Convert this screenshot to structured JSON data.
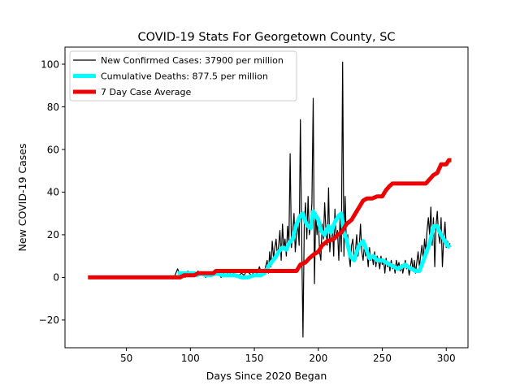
{
  "chart_data": {
    "type": "line",
    "title": "COVID-19 Stats For Georgetown County, SC",
    "xlabel": "Days Since 2020 Began",
    "ylabel": "New COVID-19 Cases",
    "xlim": [
      2,
      317
    ],
    "ylim": [
      -33,
      108
    ],
    "xticks": [
      50,
      100,
      150,
      200,
      250,
      300
    ],
    "yticks": [
      -20,
      0,
      20,
      40,
      60,
      80,
      100
    ],
    "grid": false,
    "legend_position": "upper-left",
    "series": [
      {
        "name": "New Confirmed Cases: 37900 per million",
        "color": "#000000",
        "points": [
          [
            86,
            0
          ],
          [
            88,
            1
          ],
          [
            90,
            4
          ],
          [
            92,
            1
          ],
          [
            94,
            2
          ],
          [
            96,
            0
          ],
          [
            98,
            3
          ],
          [
            100,
            1
          ],
          [
            102,
            2
          ],
          [
            104,
            1
          ],
          [
            106,
            3
          ],
          [
            108,
            1
          ],
          [
            110,
            2
          ],
          [
            112,
            0
          ],
          [
            114,
            2
          ],
          [
            116,
            1
          ],
          [
            118,
            3
          ],
          [
            120,
            1
          ],
          [
            122,
            2
          ],
          [
            124,
            0
          ],
          [
            126,
            2
          ],
          [
            128,
            1
          ],
          [
            130,
            3
          ],
          [
            132,
            1
          ],
          [
            134,
            2
          ],
          [
            136,
            0
          ],
          [
            138,
            1
          ],
          [
            140,
            2
          ],
          [
            142,
            1
          ],
          [
            144,
            3
          ],
          [
            146,
            2
          ],
          [
            148,
            1
          ],
          [
            150,
            3
          ],
          [
            152,
            2
          ],
          [
            154,
            5
          ],
          [
            156,
            1
          ],
          [
            158,
            3
          ],
          [
            160,
            8
          ],
          [
            161,
            2
          ],
          [
            162,
            12
          ],
          [
            163,
            5
          ],
          [
            164,
            17
          ],
          [
            165,
            9
          ],
          [
            166,
            14
          ],
          [
            167,
            18
          ],
          [
            168,
            10
          ],
          [
            169,
            15
          ],
          [
            170,
            22
          ],
          [
            171,
            8
          ],
          [
            172,
            25
          ],
          [
            173,
            13
          ],
          [
            174,
            18
          ],
          [
            175,
            10
          ],
          [
            176,
            24
          ],
          [
            177,
            16
          ],
          [
            178,
            58
          ],
          [
            179,
            14
          ],
          [
            180,
            22
          ],
          [
            181,
            30
          ],
          [
            182,
            12
          ],
          [
            183,
            20
          ],
          [
            184,
            25
          ],
          [
            185,
            15
          ],
          [
            186,
            74
          ],
          [
            187,
            18
          ],
          [
            188,
            -28
          ],
          [
            189,
            25
          ],
          [
            190,
            35
          ],
          [
            191,
            18
          ],
          [
            192,
            38
          ],
          [
            193,
            20
          ],
          [
            194,
            25
          ],
          [
            195,
            35
          ],
          [
            196,
            84
          ],
          [
            197,
            -3
          ],
          [
            198,
            30
          ],
          [
            199,
            20
          ],
          [
            200,
            28
          ],
          [
            201,
            12
          ],
          [
            202,
            8
          ],
          [
            203,
            25
          ],
          [
            204,
            18
          ],
          [
            205,
            35
          ],
          [
            206,
            22
          ],
          [
            207,
            15
          ],
          [
            208,
            42
          ],
          [
            209,
            12
          ],
          [
            210,
            20
          ],
          [
            211,
            25
          ],
          [
            212,
            10
          ],
          [
            213,
            32
          ],
          [
            214,
            18
          ],
          [
            215,
            22
          ],
          [
            216,
            8
          ],
          [
            217,
            28
          ],
          [
            218,
            12
          ],
          [
            219,
            101
          ],
          [
            220,
            10
          ],
          [
            221,
            38
          ],
          [
            222,
            15
          ],
          [
            223,
            20
          ],
          [
            224,
            10
          ],
          [
            225,
            5
          ],
          [
            226,
            15
          ],
          [
            227,
            18
          ],
          [
            228,
            8
          ],
          [
            229,
            12
          ],
          [
            230,
            20
          ],
          [
            231,
            10
          ],
          [
            232,
            15
          ],
          [
            233,
            25
          ],
          [
            234,
            12
          ],
          [
            235,
            8
          ],
          [
            236,
            15
          ],
          [
            237,
            10
          ],
          [
            238,
            12
          ],
          [
            239,
            5
          ],
          [
            240,
            14
          ],
          [
            241,
            8
          ],
          [
            242,
            10
          ],
          [
            243,
            6
          ],
          [
            244,
            12
          ],
          [
            245,
            5
          ],
          [
            246,
            10
          ],
          [
            247,
            8
          ],
          [
            248,
            4
          ],
          [
            249,
            10
          ],
          [
            250,
            6
          ],
          [
            251,
            8
          ],
          [
            252,
            2
          ],
          [
            253,
            9
          ],
          [
            254,
            5
          ],
          [
            255,
            7
          ],
          [
            256,
            3
          ],
          [
            257,
            8
          ],
          [
            258,
            4
          ],
          [
            259,
            6
          ],
          [
            260,
            2
          ],
          [
            261,
            8
          ],
          [
            262,
            5
          ],
          [
            263,
            7
          ],
          [
            264,
            3
          ],
          [
            265,
            6
          ],
          [
            266,
            2
          ],
          [
            267,
            5
          ],
          [
            268,
            8
          ],
          [
            269,
            4
          ],
          [
            270,
            6
          ],
          [
            271,
            1
          ],
          [
            272,
            5
          ],
          [
            273,
            9
          ],
          [
            274,
            3
          ],
          [
            275,
            8
          ],
          [
            276,
            2
          ],
          [
            277,
            7
          ],
          [
            278,
            12
          ],
          [
            279,
            5
          ],
          [
            280,
            10
          ],
          [
            281,
            15
          ],
          [
            282,
            8
          ],
          [
            283,
            18
          ],
          [
            284,
            12
          ],
          [
            285,
            22
          ],
          [
            286,
            28
          ],
          [
            287,
            20
          ],
          [
            288,
            33
          ],
          [
            289,
            15
          ],
          [
            290,
            28
          ],
          [
            291,
            5
          ],
          [
            292,
            24
          ],
          [
            293,
            31
          ],
          [
            294,
            20
          ],
          [
            295,
            16
          ],
          [
            296,
            28
          ],
          [
            297,
            5
          ],
          [
            298,
            18
          ],
          [
            299,
            26
          ],
          [
            300,
            14
          ],
          [
            301,
            17
          ],
          [
            302,
            15
          ],
          [
            303,
            16
          ]
        ]
      },
      {
        "name": "Cumulative Deaths: 877.5 per million",
        "color": "#00ffff",
        "points": [
          [
            90,
            2
          ],
          [
            95,
            2
          ],
          [
            100,
            2
          ],
          [
            103,
            2
          ],
          [
            105,
            1
          ],
          [
            108,
            2
          ],
          [
            112,
            1
          ],
          [
            116,
            1
          ],
          [
            120,
            2
          ],
          [
            125,
            1
          ],
          [
            130,
            1
          ],
          [
            135,
            1
          ],
          [
            140,
            0
          ],
          [
            145,
            0
          ],
          [
            150,
            1
          ],
          [
            153,
            1
          ],
          [
            155,
            1
          ],
          [
            158,
            2
          ],
          [
            162,
            6
          ],
          [
            166,
            9
          ],
          [
            169,
            12
          ],
          [
            172,
            14
          ],
          [
            175,
            13
          ],
          [
            177,
            16
          ],
          [
            180,
            18
          ],
          [
            183,
            25
          ],
          [
            186,
            29
          ],
          [
            188,
            30
          ],
          [
            190,
            26
          ],
          [
            192,
            24
          ],
          [
            194,
            23
          ],
          [
            196,
            31
          ],
          [
            198,
            29
          ],
          [
            200,
            27
          ],
          [
            202,
            22
          ],
          [
            205,
            20
          ],
          [
            208,
            24
          ],
          [
            210,
            21
          ],
          [
            213,
            26
          ],
          [
            216,
            29
          ],
          [
            218,
            30
          ],
          [
            220,
            21
          ],
          [
            222,
            18
          ],
          [
            225,
            10
          ],
          [
            228,
            8
          ],
          [
            230,
            12
          ],
          [
            232,
            15
          ],
          [
            235,
            17
          ],
          [
            237,
            14
          ],
          [
            240,
            9
          ],
          [
            243,
            10
          ],
          [
            246,
            8
          ],
          [
            250,
            8
          ],
          [
            253,
            7
          ],
          [
            256,
            6
          ],
          [
            259,
            5
          ],
          [
            262,
            4
          ],
          [
            265,
            5
          ],
          [
            268,
            6
          ],
          [
            270,
            5
          ],
          [
            273,
            4
          ],
          [
            276,
            3
          ],
          [
            279,
            3
          ],
          [
            281,
            6
          ],
          [
            284,
            11
          ],
          [
            287,
            16
          ],
          [
            290,
            24
          ],
          [
            293,
            24
          ],
          [
            295,
            21
          ],
          [
            297,
            19
          ],
          [
            299,
            17
          ],
          [
            301,
            15
          ],
          [
            303,
            14
          ]
        ]
      },
      {
        "name": "7 Day Case Average",
        "color": "#ee0000",
        "points": [
          [
            20,
            0
          ],
          [
            92,
            0
          ],
          [
            95,
            1
          ],
          [
            103,
            1
          ],
          [
            106,
            2
          ],
          [
            118,
            2
          ],
          [
            120,
            3
          ],
          [
            150,
            3
          ],
          [
            183,
            3
          ],
          [
            186,
            6
          ],
          [
            190,
            7
          ],
          [
            193,
            9
          ],
          [
            197,
            11
          ],
          [
            200,
            12
          ],
          [
            203,
            15
          ],
          [
            207,
            17
          ],
          [
            212,
            18
          ],
          [
            215,
            20
          ],
          [
            218,
            21
          ],
          [
            220,
            23
          ],
          [
            222,
            25
          ],
          [
            226,
            27
          ],
          [
            229,
            30
          ],
          [
            232,
            33
          ],
          [
            235,
            36
          ],
          [
            238,
            37
          ],
          [
            242,
            37
          ],
          [
            246,
            38
          ],
          [
            250,
            38
          ],
          [
            253,
            41
          ],
          [
            256,
            43
          ],
          [
            258,
            44
          ],
          [
            262,
            44
          ],
          [
            275,
            44
          ],
          [
            284,
            44
          ],
          [
            287,
            46
          ],
          [
            290,
            48
          ],
          [
            293,
            49
          ],
          [
            296,
            53
          ],
          [
            300,
            53
          ],
          [
            302,
            55
          ],
          [
            304,
            55
          ]
        ]
      }
    ]
  }
}
